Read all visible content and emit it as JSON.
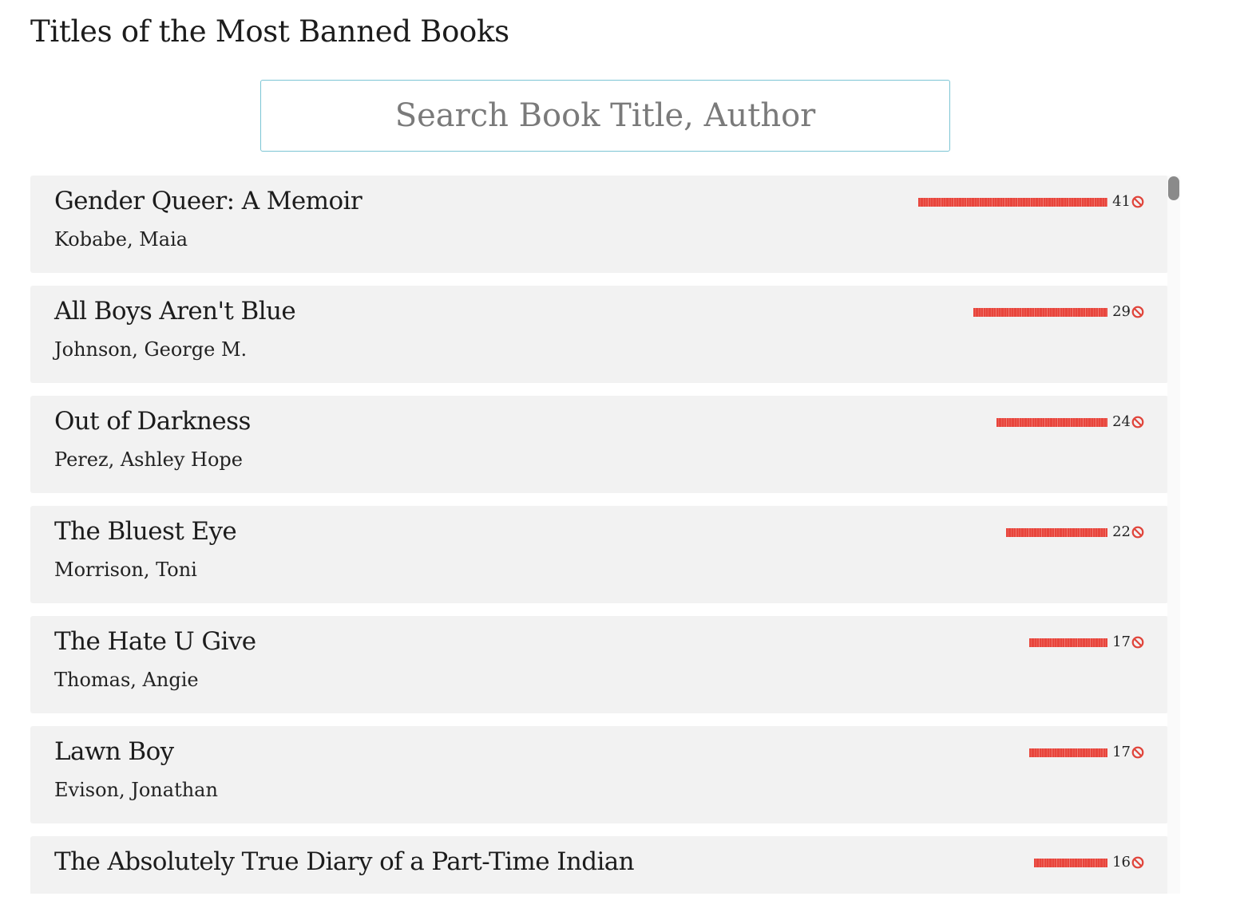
{
  "page": {
    "title": "Titles of the Most Banned Books"
  },
  "search": {
    "placeholder": "Search Book Title, Author",
    "value": ""
  },
  "ban_icon": "no-entry-icon",
  "bar_color": "#e8453c",
  "books": [
    {
      "title": "Gender Queer: A Memoir",
      "author": "Kobabe, Maia",
      "bans": 41
    },
    {
      "title": "All Boys Aren't Blue",
      "author": "Johnson, George M.",
      "bans": 29
    },
    {
      "title": "Out of Darkness",
      "author": "Perez, Ashley Hope",
      "bans": 24
    },
    {
      "title": "The Bluest Eye",
      "author": "Morrison, Toni",
      "bans": 22
    },
    {
      "title": "The Hate U Give",
      "author": "Thomas, Angie",
      "bans": 17
    },
    {
      "title": "Lawn Boy",
      "author": "Evison, Jonathan",
      "bans": 17
    },
    {
      "title": "The Absolutely True Diary of a Part-Time Indian",
      "author": "",
      "bans": 16
    }
  ]
}
